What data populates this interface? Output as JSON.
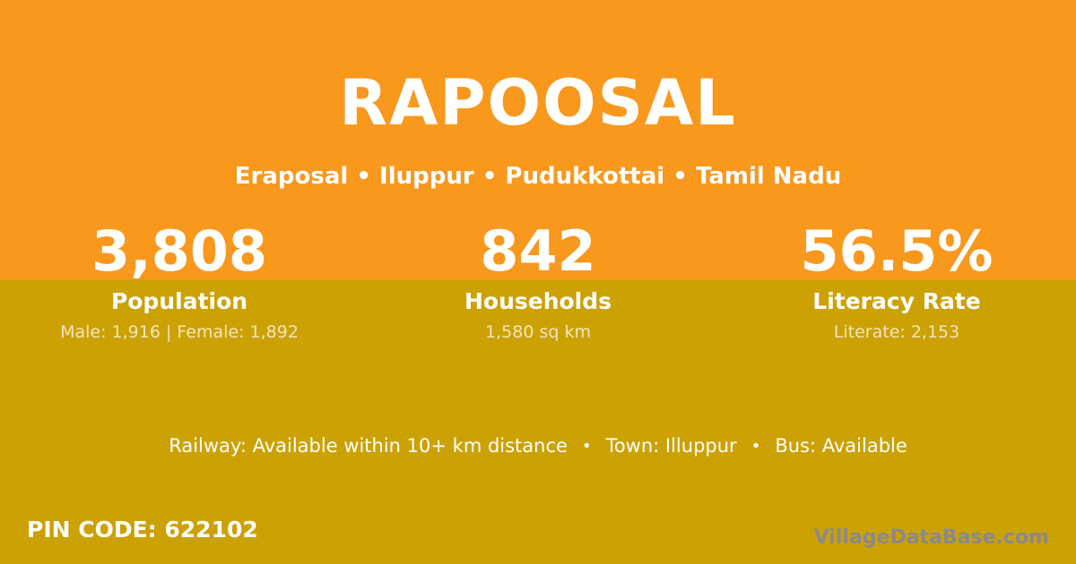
{
  "card": {
    "title": "RAPOOSAL",
    "subtitle": "Eraposal • Iluppur • Pudukkottai • Tamil Nadu"
  },
  "stats": [
    {
      "value": "3,808",
      "label": "Population",
      "detail": "Male: 1,916 | Female: 1,892"
    },
    {
      "value": "842",
      "label": "Households",
      "detail": "1,580 sq km"
    },
    {
      "value": "56.5%",
      "label": "Literacy Rate",
      "detail": "Literate: 2,153"
    }
  ],
  "amenities": {
    "railway": "Railway: Available within 10+ km distance",
    "separator": "•",
    "town": "Town: Illuppur",
    "bus": "Bus: Available"
  },
  "footer": {
    "pin_code": "PIN CODE: 622102",
    "watermark": "VillageDataBase.com"
  },
  "colors": {
    "orange": "#F8981D",
    "gold": "#CCA104",
    "white": "#FFFFFF",
    "detail_text": "#F2E5BC",
    "watermark_gray": "#8A8A8A"
  }
}
